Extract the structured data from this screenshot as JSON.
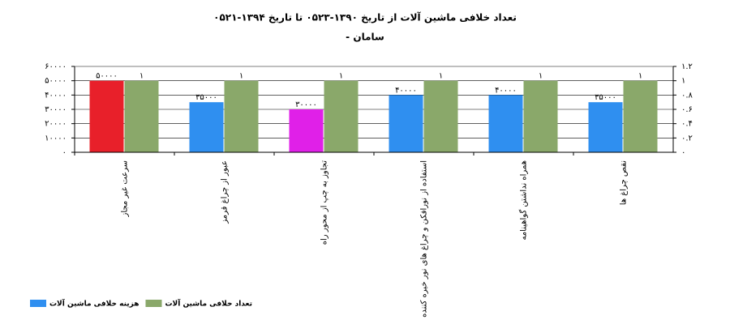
{
  "chart_data": {
    "type": "bar",
    "title": "تعداد خلافی ماشین آلات  از تاریخ  ۱۳۹۰-۰۵۲۳ تا تاریخ  ۱۳۹۴-۰۵۲۱",
    "subtitle": "-    سامان",
    "categories": [
      "سرعت غیر مجاز",
      "عبور از چراغ قرمز",
      "تجاوز به چپ از محور راه",
      "استفاده از نورافکن و چراغ های نور خیره کننده",
      "همراه نداشتن گواهینامه",
      "نقص چراغ ها"
    ],
    "series": [
      {
        "name": "هزینه خلافی ماشین آلات",
        "color": "#2f8ff0",
        "colors": [
          "#e8202a",
          "#2f8ff0",
          "#e020e8",
          "#2f8ff0",
          "#2f8ff0",
          "#2f8ff0"
        ],
        "values": [
          50000,
          35000,
          30000,
          40000,
          40000,
          35000
        ],
        "value_labels": [
          "۵۰۰۰۰",
          "۳۵۰۰۰",
          "۳۰۰۰۰",
          "۴۰۰۰۰",
          "۴۰۰۰۰",
          "۳۵۰۰۰"
        ]
      },
      {
        "name": "تعداد خلافی ماشین آلات",
        "color": "#8aa86a",
        "axis": "y2",
        "values": [
          1,
          1,
          1,
          1,
          1,
          1
        ],
        "value_labels": [
          "۱",
          "۱",
          "۱",
          "۱",
          "۱",
          "۱"
        ]
      }
    ],
    "ylim": [
      0,
      60000
    ],
    "yticks": [
      {
        "value": 0,
        "label": "۰"
      },
      {
        "value": 10000,
        "label": "۱۰۰۰۰"
      },
      {
        "value": 20000,
        "label": "۲۰۰۰۰"
      },
      {
        "value": 30000,
        "label": "۳۰۰۰۰"
      },
      {
        "value": 40000,
        "label": "۴۰۰۰۰"
      },
      {
        "value": 50000,
        "label": "۵۰۰۰۰"
      },
      {
        "value": 60000,
        "label": "۶۰۰۰۰"
      }
    ],
    "y2lim": [
      0,
      1.2
    ],
    "y2ticks": [
      {
        "value": 0,
        "label": "۰"
      },
      {
        "value": 0.2,
        "label": "۰.۲"
      },
      {
        "value": 0.4,
        "label": "۰.۴"
      },
      {
        "value": 0.6,
        "label": "۰.۶"
      },
      {
        "value": 0.8,
        "label": "۰.۸"
      },
      {
        "value": 1,
        "label": "۱"
      },
      {
        "value": 1.2,
        "label": "۱.۲"
      }
    ],
    "grid": true
  }
}
